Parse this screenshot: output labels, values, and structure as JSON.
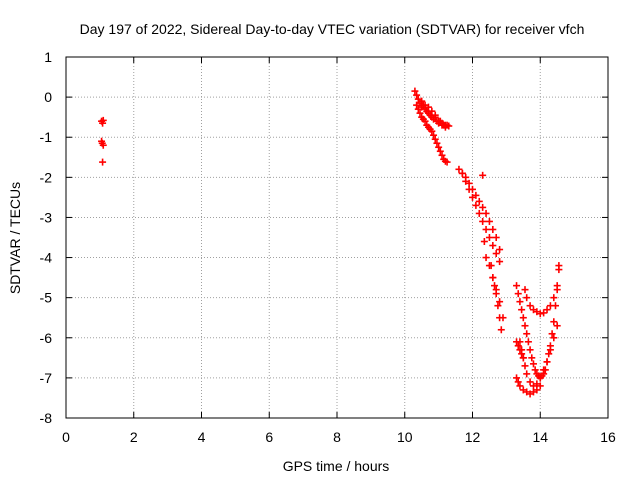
{
  "chart_data": {
    "type": "scatter",
    "title": "Day 197 of 2022, Sidereal Day-to-day VTEC variation (SDTVAR) for receiver vfch",
    "xlabel": "GPS time / hours",
    "ylabel": "SDTVAR / TECUs",
    "xlim": [
      0,
      16
    ],
    "ylim": [
      -8,
      1
    ],
    "xticks": [
      0,
      2,
      4,
      6,
      8,
      10,
      12,
      14,
      16
    ],
    "yticks": [
      1,
      0,
      -1,
      -2,
      -3,
      -4,
      -5,
      -6,
      -7,
      -8
    ],
    "grid": true,
    "marker": "+",
    "colors": {
      "series": "#ff0000",
      "grid": "#a0a0a0",
      "axis": "#000000"
    },
    "series": [
      {
        "name": "SDTVAR",
        "x": [
          1.05,
          1.08,
          1.1,
          1.05,
          1.07,
          1.1,
          1.08,
          10.3,
          10.35,
          10.4,
          10.45,
          10.5,
          10.55,
          10.6,
          10.65,
          10.7,
          10.75,
          10.8,
          10.85,
          10.9,
          10.95,
          11.0,
          11.05,
          11.1,
          11.15,
          11.2,
          11.25,
          11.3,
          10.35,
          10.4,
          10.45,
          10.5,
          10.55,
          10.6,
          10.65,
          10.7,
          10.75,
          10.8,
          10.85,
          10.9,
          10.95,
          11.0,
          11.05,
          11.1,
          11.15,
          11.2,
          11.25,
          10.5,
          10.6,
          10.7,
          10.8,
          10.9,
          11.0,
          11.1,
          11.2,
          11.6,
          11.7,
          11.8,
          11.9,
          12.0,
          12.1,
          12.2,
          12.3,
          12.4,
          12.5,
          12.6,
          12.7,
          12.8,
          11.7,
          11.8,
          11.9,
          12.0,
          12.1,
          12.2,
          12.3,
          12.4,
          12.5,
          12.6,
          12.7,
          12.8,
          12.3,
          12.35,
          12.4,
          12.5,
          12.6,
          12.7,
          12.8,
          12.9,
          12.55,
          12.6,
          12.65,
          12.7,
          12.75,
          12.8,
          12.85,
          13.3,
          13.35,
          13.4,
          13.45,
          13.5,
          13.55,
          13.6,
          13.65,
          13.7,
          13.75,
          13.8,
          13.85,
          13.9,
          13.95,
          14.0,
          14.05,
          14.1,
          14.15,
          14.2,
          14.25,
          14.3,
          14.35,
          14.4,
          14.45,
          14.5,
          14.55,
          13.4,
          13.45,
          13.5,
          13.55,
          13.6,
          13.7,
          13.8,
          13.9,
          14.0,
          14.1,
          14.2,
          14.3,
          14.4,
          14.5,
          13.55,
          13.6,
          13.7,
          13.8,
          13.9,
          14.0,
          14.1,
          14.2,
          14.3,
          14.4,
          14.5,
          14.55,
          13.3,
          13.35,
          13.4,
          13.5,
          13.6,
          13.7,
          13.8,
          13.9,
          14.0,
          13.3,
          13.35,
          13.4,
          13.45,
          13.5
        ],
        "y": [
          -0.6,
          -0.65,
          -0.58,
          -1.1,
          -1.15,
          -1.2,
          -1.62,
          0.15,
          0.05,
          -0.05,
          -0.15,
          -0.25,
          -0.2,
          -0.3,
          -0.35,
          -0.4,
          -0.45,
          -0.5,
          -0.55,
          -0.5,
          -0.6,
          -0.65,
          -0.6,
          -0.7,
          -0.7,
          -0.75,
          -0.7,
          -0.72,
          -0.2,
          -0.3,
          -0.4,
          -0.5,
          -0.55,
          -0.6,
          -0.7,
          -0.75,
          -0.8,
          -0.85,
          -0.95,
          -1.05,
          -1.15,
          -1.25,
          -1.35,
          -1.45,
          -1.55,
          -1.6,
          -1.62,
          -0.1,
          -0.2,
          -0.25,
          -0.35,
          -0.45,
          -0.6,
          -0.65,
          -0.7,
          -1.8,
          -1.9,
          -2.1,
          -2.3,
          -2.5,
          -2.7,
          -2.9,
          -3.1,
          -3.3,
          -3.5,
          -3.7,
          -3.9,
          -4.1,
          -1.9,
          -2.0,
          -2.15,
          -2.3,
          -2.45,
          -2.6,
          -2.75,
          -2.9,
          -3.1,
          -3.3,
          -3.5,
          -3.8,
          -1.95,
          -3.6,
          -4.0,
          -4.2,
          -4.5,
          -4.8,
          -5.1,
          -5.5,
          -4.2,
          -4.5,
          -4.7,
          -4.9,
          -5.2,
          -5.5,
          -5.8,
          -4.7,
          -4.9,
          -5.1,
          -5.3,
          -5.5,
          -5.7,
          -5.9,
          -6.1,
          -6.3,
          -6.5,
          -6.65,
          -6.8,
          -6.9,
          -6.95,
          -7.0,
          -6.95,
          -6.9,
          -6.8,
          -6.6,
          -6.4,
          -6.2,
          -5.9,
          -5.6,
          -5.2,
          -4.8,
          -4.2,
          -6.1,
          -6.3,
          -6.5,
          -6.7,
          -6.9,
          -7.1,
          -7.2,
          -7.15,
          -7.0,
          -6.8,
          -6.6,
          -6.3,
          -6.0,
          -5.7,
          -4.8,
          -5.0,
          -5.2,
          -5.3,
          -5.35,
          -5.4,
          -5.38,
          -5.3,
          -5.2,
          -5.0,
          -4.7,
          -4.3,
          -7.0,
          -7.1,
          -7.2,
          -7.3,
          -7.35,
          -7.4,
          -7.35,
          -7.3,
          -7.2,
          -6.1,
          -6.2,
          -6.3,
          -6.4,
          -6.5
        ]
      }
    ]
  }
}
